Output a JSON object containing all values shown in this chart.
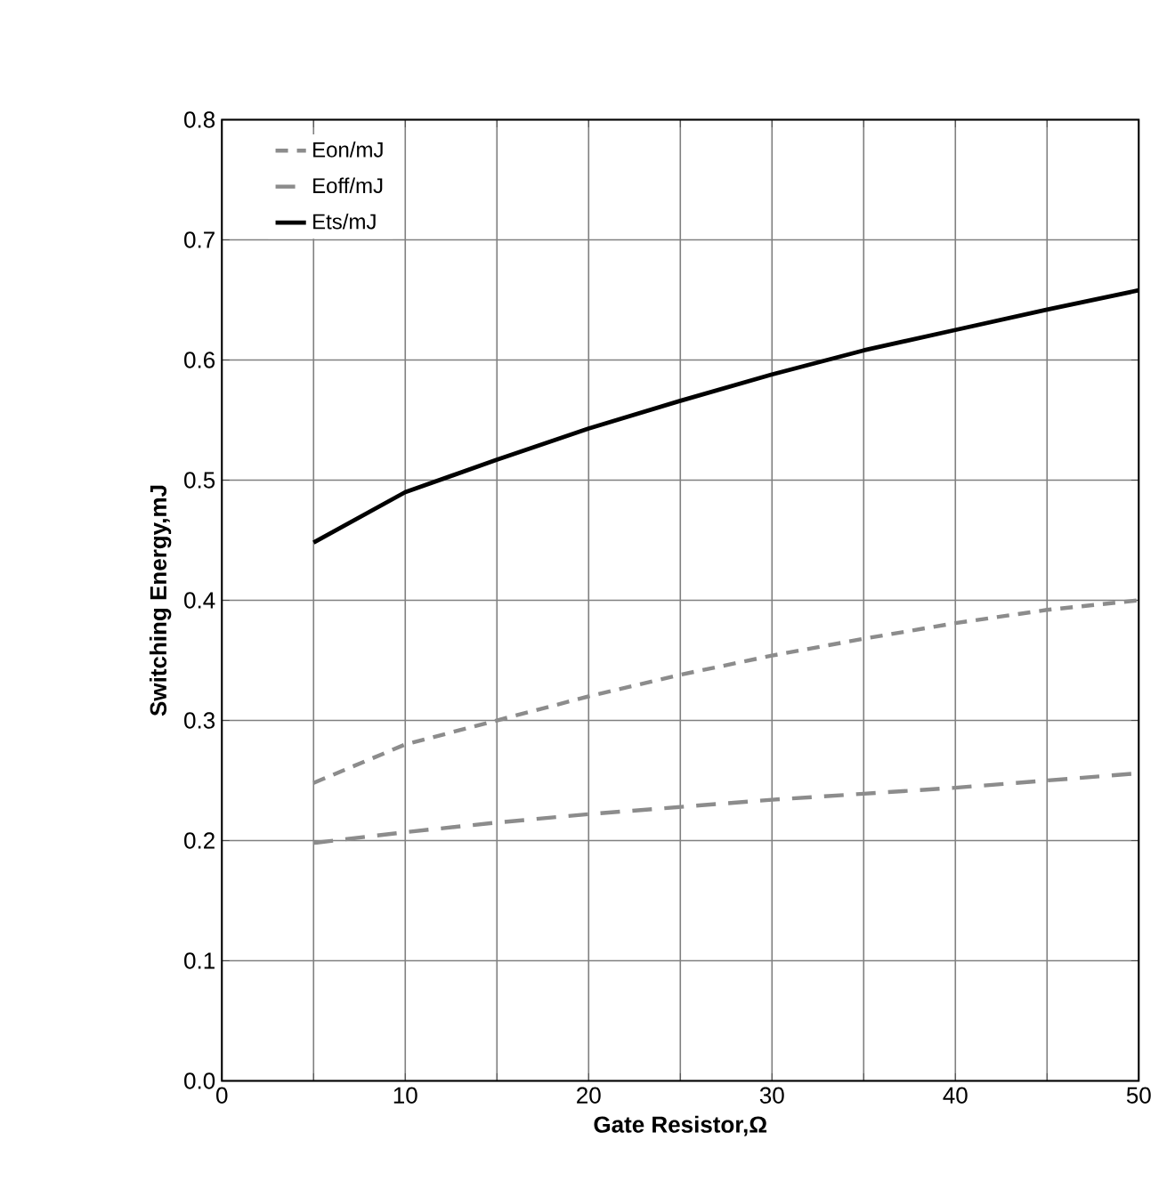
{
  "chart_data": {
    "type": "line",
    "xlabel": "Gate Resistor,Ω",
    "ylabel": "Switching Energy,mJ",
    "xlim": [
      0,
      50
    ],
    "ylim": [
      0,
      0.8
    ],
    "xticks": [
      0,
      {
        "value": 5,
        "label": null
      },
      10,
      {
        "value": 15,
        "label": null
      },
      20,
      {
        "value": 25,
        "label": null
      },
      30,
      {
        "value": 35,
        "label": null
      },
      40,
      {
        "value": 45,
        "label": null
      },
      50
    ],
    "yticks": [
      {
        "value": 0,
        "label": "0.0"
      },
      0.1,
      0.2,
      0.3,
      0.4,
      0.5,
      0.6,
      0.7,
      0.8
    ],
    "grid": true,
    "legend": "top left",
    "marker": "none",
    "x": [
      5,
      10,
      15,
      20,
      25,
      30,
      35,
      40,
      45,
      50
    ],
    "series": [
      {
        "name": "Eon/mJ",
        "color": "#8c8c8c",
        "line_style": "dotted",
        "values": [
          0.248,
          0.28,
          0.3,
          0.32,
          0.338,
          0.354,
          0.368,
          0.381,
          0.392,
          0.4
        ]
      },
      {
        "name": "Eoff/mJ",
        "color": "#8c8c8c",
        "line_style": "dashed",
        "values": [
          0.198,
          0.207,
          0.215,
          0.222,
          0.228,
          0.234,
          0.239,
          0.244,
          0.25,
          0.256
        ]
      },
      {
        "name": "Ets/mJ",
        "color": "#000000",
        "line_style": "solid",
        "values": [
          0.448,
          0.49,
          0.517,
          0.543,
          0.566,
          0.588,
          0.608,
          0.625,
          0.642,
          0.658
        ]
      }
    ]
  }
}
